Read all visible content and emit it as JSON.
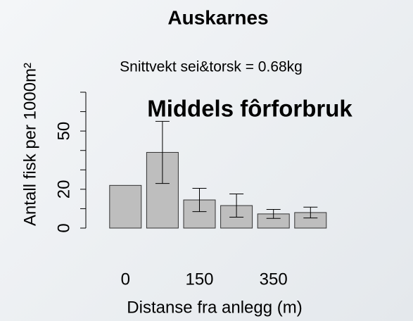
{
  "chart_data": {
    "type": "bar",
    "title": "Auskarnes",
    "subtitle": "Snittvekt sei&torsk = 0.68kg",
    "annotation": "Middels fôrforbruk",
    "annotation_color": "#1aa84a",
    "x_label": "Distanse fra anlegg (m)",
    "y_label": "Antall fisk per 1000m²",
    "categories": [
      "0",
      null,
      "150",
      null,
      "350",
      null
    ],
    "values": [
      22,
      39,
      14.5,
      11.6,
      7.3,
      8
    ],
    "errors": [
      null,
      16,
      6,
      6,
      2.3,
      2.8
    ],
    "color": "#bebebe",
    "ylim": [
      0,
      70
    ],
    "yticks": [
      0,
      20,
      50
    ],
    "yminor_ticks": [
      10,
      30,
      40,
      60,
      70
    ]
  }
}
